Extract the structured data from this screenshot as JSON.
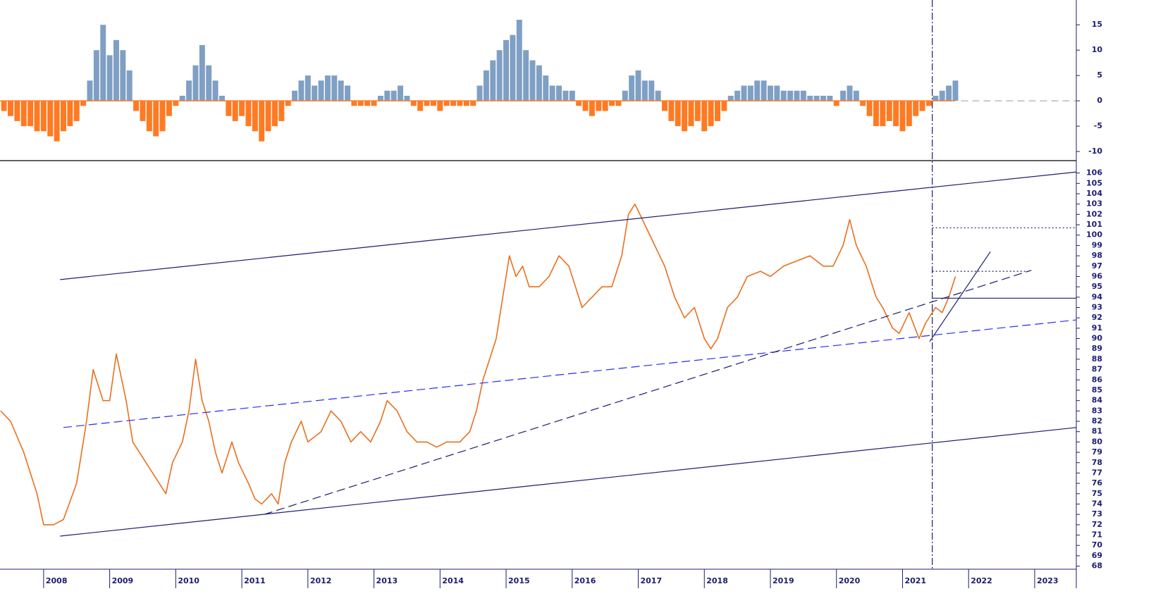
{
  "chart_data": [
    {
      "type": "bar",
      "x": [
        2007.4,
        2007.5,
        2007.6,
        2007.7,
        2007.8,
        2007.9,
        2008.0,
        2008.1,
        2008.2,
        2008.3,
        2008.4,
        2008.5,
        2008.6,
        2008.7,
        2008.8,
        2008.9,
        2009.0,
        2009.1,
        2009.2,
        2009.3,
        2009.4,
        2009.5,
        2009.6,
        2009.7,
        2009.8,
        2009.9,
        2010.0,
        2010.1,
        2010.2,
        2010.3,
        2010.4,
        2010.5,
        2010.6,
        2010.7,
        2010.8,
        2010.9,
        2011.0,
        2011.1,
        2011.2,
        2011.3,
        2011.4,
        2011.5,
        2011.6,
        2011.7,
        2011.8,
        2011.9,
        2012.0,
        2012.1,
        2012.2,
        2012.3,
        2012.4,
        2012.5,
        2012.6,
        2012.7,
        2012.8,
        2012.9,
        2013.0,
        2013.1,
        2013.2,
        2013.3,
        2013.4,
        2013.5,
        2013.6,
        2013.7,
        2013.8,
        2013.9,
        2014.0,
        2014.1,
        2014.2,
        2014.3,
        2014.4,
        2014.5,
        2014.6,
        2014.7,
        2014.8,
        2014.9,
        2015.0,
        2015.1,
        2015.2,
        2015.3,
        2015.4,
        2015.5,
        2015.6,
        2015.7,
        2015.8,
        2015.9,
        2016.0,
        2016.1,
        2016.2,
        2016.3,
        2016.4,
        2016.5,
        2016.6,
        2016.7,
        2016.8,
        2016.9,
        2017.0,
        2017.1,
        2017.2,
        2017.3,
        2017.4,
        2017.5,
        2017.6,
        2017.7,
        2017.8,
        2017.9,
        2018.0,
        2018.1,
        2018.2,
        2018.3,
        2018.4,
        2018.5,
        2018.6,
        2018.7,
        2018.8,
        2018.9,
        2019.0,
        2019.1,
        2019.2,
        2019.3,
        2019.4,
        2019.5,
        2019.6,
        2019.7,
        2019.8,
        2019.9,
        2020.0,
        2020.1,
        2020.2,
        2020.3,
        2020.4,
        2020.5,
        2020.6,
        2020.7,
        2020.8,
        2020.9,
        2021.0,
        2021.1,
        2021.2,
        2021.3,
        2021.4,
        2021.5,
        2021.6,
        2021.7,
        2021.8
      ],
      "values": [
        -2,
        -3,
        -4,
        -5,
        -5,
        -6,
        -6,
        -7,
        -8,
        -6,
        -5,
        -4,
        -1,
        4,
        10,
        15,
        9,
        12,
        10,
        6,
        -2,
        -4,
        -6,
        -7,
        -6,
        -3,
        -1,
        1,
        4,
        7,
        11,
        7,
        4,
        1,
        -3,
        -4,
        -3,
        -5,
        -6,
        -8,
        -6,
        -5,
        -4,
        -1,
        2,
        4,
        5,
        3,
        4,
        5,
        5,
        4,
        3,
        -1,
        -1,
        -1,
        -1,
        1,
        2,
        2,
        3,
        1,
        -1,
        -2,
        -1,
        -1,
        -2,
        -1,
        -1,
        -1,
        -1,
        -1,
        3,
        6,
        8,
        10,
        12,
        13,
        16,
        10,
        8,
        7,
        5,
        3,
        3,
        2,
        2,
        -1,
        -2,
        -3,
        -2,
        -2,
        -1,
        -1,
        2,
        5,
        6,
        4,
        4,
        2,
        -2,
        -4,
        -5,
        -6,
        -5,
        -4,
        -6,
        -5,
        -4,
        -2,
        1,
        2,
        3,
        3,
        4,
        4,
        3,
        3,
        2,
        2,
        2,
        2,
        1,
        1,
        1,
        1,
        -1,
        2,
        3,
        2,
        -1,
        -3,
        -5,
        -5,
        -4,
        -5,
        -6,
        -5,
        -3,
        -2,
        -1,
        1,
        2,
        3,
        4
      ],
      "positive_color": "#7f9fc4",
      "negative_color": "#ff7a22",
      "xlim": [
        2007.34,
        2023.63
      ],
      "ylim": [
        -11.8,
        19.9
      ],
      "yticks": [
        -10,
        -5,
        0,
        5,
        10,
        15
      ]
    },
    {
      "type": "line",
      "x": [
        2007.35,
        2007.5,
        2007.7,
        2007.9,
        2008.0,
        2008.15,
        2008.3,
        2008.5,
        2008.65,
        2008.75,
        2008.9,
        2009.0,
        2009.1,
        2009.25,
        2009.35,
        2009.55,
        2009.75,
        2009.85,
        2009.95,
        2010.1,
        2010.2,
        2010.3,
        2010.4,
        2010.5,
        2010.6,
        2010.7,
        2010.85,
        2010.95,
        2011.1,
        2011.2,
        2011.3,
        2011.45,
        2011.55,
        2011.65,
        2011.75,
        2011.9,
        2012.0,
        2012.2,
        2012.35,
        2012.5,
        2012.65,
        2012.8,
        2012.95,
        2013.1,
        2013.2,
        2013.35,
        2013.5,
        2013.65,
        2013.8,
        2013.95,
        2014.1,
        2014.3,
        2014.45,
        2014.55,
        2014.65,
        2014.75,
        2014.85,
        2014.95,
        2015.05,
        2015.15,
        2015.25,
        2015.35,
        2015.5,
        2015.65,
        2015.8,
        2015.95,
        2016.05,
        2016.15,
        2016.3,
        2016.45,
        2016.6,
        2016.75,
        2016.85,
        2016.95,
        2017.1,
        2017.25,
        2017.4,
        2017.55,
        2017.7,
        2017.85,
        2018.0,
        2018.1,
        2018.2,
        2018.35,
        2018.5,
        2018.65,
        2018.85,
        2019.0,
        2019.2,
        2019.4,
        2019.6,
        2019.8,
        2019.95,
        2020.1,
        2020.2,
        2020.3,
        2020.45,
        2020.6,
        2020.7,
        2020.85,
        2020.95,
        2021.1,
        2021.25,
        2021.35,
        2021.5,
        2021.6,
        2021.7,
        2021.8
      ],
      "values": [
        83,
        82,
        79,
        75,
        72,
        72,
        72.5,
        76,
        82,
        87,
        84,
        84,
        88.5,
        84,
        80,
        78,
        76,
        75,
        78,
        80,
        83,
        88,
        84,
        82,
        79,
        77,
        80,
        78,
        76,
        74.5,
        74,
        75,
        74,
        78,
        80,
        82,
        80,
        81,
        83,
        82,
        80,
        81,
        80,
        82,
        84,
        83,
        81,
        80,
        80,
        79.5,
        80,
        80,
        81,
        83,
        86,
        88,
        90,
        94,
        98,
        96,
        97,
        95,
        95,
        96,
        98,
        97,
        95,
        93,
        94,
        95,
        95,
        98,
        102,
        103,
        101,
        99,
        97,
        94,
        92,
        93,
        90,
        89,
        90,
        93,
        94,
        96,
        96.5,
        96,
        97,
        97.5,
        98,
        97,
        97,
        99,
        101.5,
        99,
        97,
        94,
        93,
        91,
        90.5,
        92.5,
        90,
        91.5,
        93,
        92.5,
        94,
        96
      ],
      "color": "#e8701e",
      "xlim": [
        2007.34,
        2023.63
      ],
      "xticks": [
        2008,
        2009,
        2010,
        2011,
        2012,
        2013,
        2014,
        2015,
        2016,
        2017,
        2018,
        2019,
        2020,
        2021,
        2022,
        2023
      ],
      "ylim": [
        67.7,
        107.2
      ],
      "yticks": [
        68,
        69,
        70,
        71,
        72,
        73,
        74,
        75,
        76,
        77,
        78,
        79,
        80,
        81,
        82,
        83,
        84,
        85,
        86,
        87,
        88,
        89,
        90,
        91,
        92,
        93,
        94,
        95,
        96,
        97,
        98,
        99,
        100,
        101,
        102,
        103,
        104,
        105,
        106
      ],
      "vline": 2021.45,
      "trendlines": [
        {
          "x": [
            2008.25,
            2023.63
          ],
          "y": [
            95.7,
            106.1
          ],
          "color": "#1c1c70",
          "style": "solid"
        },
        {
          "x": [
            2008.25,
            2023.63
          ],
          "y": [
            70.9,
            81.4
          ],
          "color": "#1c1c70",
          "style": "solid"
        },
        {
          "x": [
            2008.3,
            2023.63
          ],
          "y": [
            81.4,
            91.8
          ],
          "color": "#2a2aee",
          "style": "dashed"
        },
        {
          "x": [
            2011.34,
            2022.95
          ],
          "y": [
            73.0,
            96.6
          ],
          "color": "#1c1c70",
          "style": "dashed"
        },
        {
          "x": [
            2021.41,
            2022.33
          ],
          "y": [
            89.7,
            98.4
          ],
          "color": "#1c1c70",
          "style": "solid"
        },
        {
          "x": [
            2021.45,
            2023.63
          ],
          "y": [
            93.9,
            93.9
          ],
          "color": "#1c1c70",
          "style": "solid"
        },
        {
          "x": [
            2021.45,
            2023.63
          ],
          "y": [
            100.7,
            100.7
          ],
          "color": "#1c1c70",
          "style": "dotted"
        },
        {
          "x": [
            2021.45,
            2022.9
          ],
          "y": [
            96.5,
            96.5
          ],
          "color": "#1c1c70",
          "style": "dotted"
        }
      ]
    }
  ]
}
